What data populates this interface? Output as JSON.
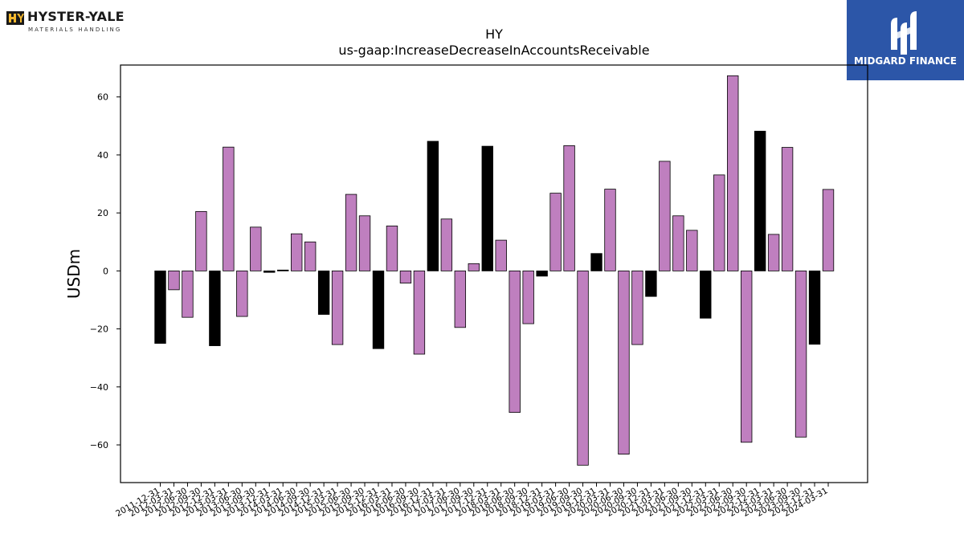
{
  "logos": {
    "left": {
      "name": "HYSTER-YALE",
      "tagline": "MATERIALS HANDLING"
    },
    "right": {
      "name": "MIDGARD FINANCE",
      "color": "#2c56a8"
    }
  },
  "colors": {
    "positive_bar": "#bf7fbf",
    "highlight_bar": "#000000"
  },
  "chart_data": {
    "type": "bar",
    "title": "HY",
    "subtitle": "us-gaap:IncreaseDecreaseInAccountsReceivable",
    "xlabel": "",
    "ylabel": "USDm",
    "ylim": [
      -73,
      71
    ],
    "yticks": [
      -60,
      -40,
      -20,
      0,
      20,
      40,
      60
    ],
    "grid": false,
    "categories": [
      "2011-12-31",
      "2012-03-31",
      "2012-06-30",
      "2012-09-30",
      "2012-12-31",
      "2013-03-31",
      "2013-06-30",
      "2013-09-30",
      "2013-12-31",
      "2014-03-31",
      "2014-06-30",
      "2014-09-30",
      "2014-12-31",
      "2015-03-31",
      "2015-06-30",
      "2015-09-30",
      "2015-12-31",
      "2016-03-31",
      "2016-06-30",
      "2016-09-30",
      "2016-12-31",
      "2017-03-31",
      "2017-06-30",
      "2017-09-30",
      "2017-12-31",
      "2018-03-31",
      "2018-06-30",
      "2018-09-30",
      "2018-12-31",
      "2019-03-31",
      "2019-06-30",
      "2019-09-30",
      "2019-12-31",
      "2020-03-31",
      "2020-06-30",
      "2020-09-30",
      "2020-12-31",
      "2021-03-31",
      "2021-06-30",
      "2021-09-30",
      "2021-12-31",
      "2022-03-31",
      "2022-06-30",
      "2022-09-30",
      "2022-12-31",
      "2023-03-31",
      "2023-06-30",
      "2023-09-30",
      "2023-12-31",
      "2024-03-31"
    ],
    "values": [
      -25,
      -6.5,
      -16,
      20.5,
      -25.8,
      42.7,
      -15.7,
      15.1,
      -0.5,
      0.3,
      12.8,
      10,
      -15,
      -25.4,
      26.4,
      19,
      -26.8,
      15.5,
      -4.2,
      -28.7,
      44.7,
      17.9,
      -19.5,
      2.5,
      43,
      10.6,
      -48.8,
      -18.2,
      -1.8,
      26.8,
      43.2,
      -67,
      6,
      28.2,
      -63.2,
      -25.4,
      -8.8,
      37.8,
      19,
      14,
      -16.3,
      33.1,
      67.3,
      -59.1,
      48.2,
      12.6,
      42.6,
      -57.3,
      -25.3,
      28.1
    ],
    "highlight": [
      true,
      false,
      false,
      false,
      true,
      false,
      false,
      false,
      true,
      true,
      false,
      false,
      true,
      false,
      false,
      false,
      true,
      false,
      false,
      false,
      true,
      false,
      false,
      false,
      true,
      false,
      false,
      false,
      true,
      false,
      false,
      false,
      true,
      false,
      false,
      false,
      true,
      false,
      false,
      false,
      true,
      false,
      false,
      false,
      true,
      false,
      false,
      false,
      true,
      false
    ]
  }
}
